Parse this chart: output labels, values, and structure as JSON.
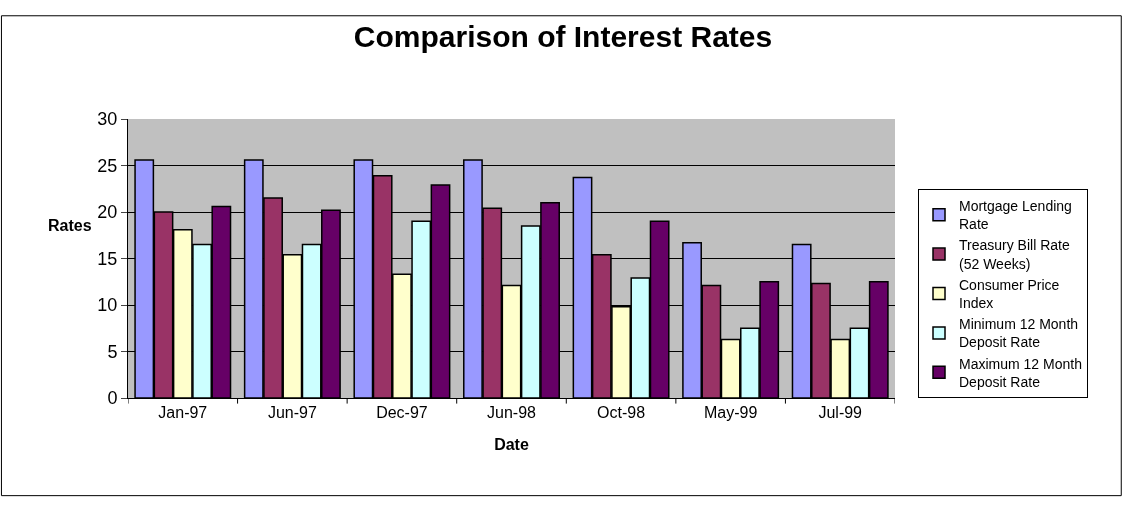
{
  "chart_data": {
    "type": "bar",
    "title": "Comparison of Interest Rates",
    "xlabel": "Date",
    "ylabel": "Rates",
    "categories": [
      "Jan-97",
      "Jun-97",
      "Dec-97",
      "Jun-98",
      "Oct-98",
      "May-99",
      "Jul-99"
    ],
    "series": [
      {
        "name": "Mortgage Lending Rate",
        "color": "#9999ff",
        "values": [
          25.6,
          25.6,
          25.6,
          25.6,
          23.7,
          16.7,
          16.5
        ]
      },
      {
        "name": "Treasury Bill Rate (52 Weeks)",
        "color": "#993366",
        "values": [
          20.0,
          21.5,
          23.9,
          20.4,
          15.4,
          12.1,
          12.3
        ]
      },
      {
        "name": "Consumer Price Index",
        "color": "#ffffcc",
        "values": [
          18.1,
          15.4,
          13.3,
          12.1,
          9.8,
          6.3,
          6.3
        ]
      },
      {
        "name": "Minimum 12 Month Deposit Rate",
        "color": "#ccffff",
        "values": [
          16.5,
          16.5,
          19.0,
          18.5,
          12.9,
          7.5,
          7.5
        ]
      },
      {
        "name": "Maximum 12 Month Deposit Rate",
        "color": "#660066",
        "values": [
          20.6,
          20.2,
          22.9,
          21.0,
          19.0,
          12.5,
          12.5
        ]
      }
    ],
    "ylim": [
      0,
      30
    ],
    "yticks": [
      0,
      5,
      10,
      15,
      20,
      25,
      30
    ],
    "grid": "y",
    "legend": "right"
  }
}
